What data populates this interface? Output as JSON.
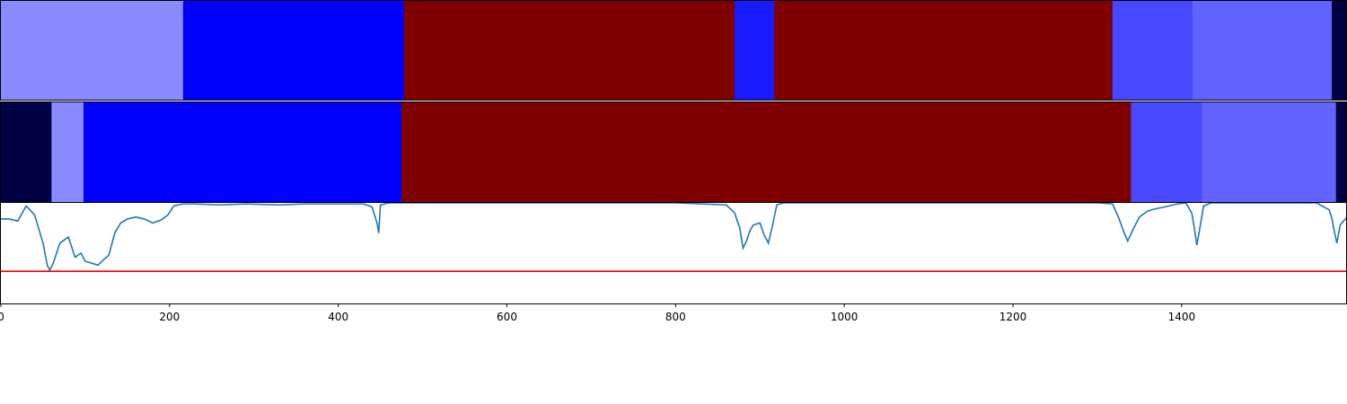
{
  "chart_data": {
    "type": "heatmap",
    "xlim": [
      0,
      1595
    ],
    "xticks": [
      0,
      200,
      400,
      600,
      800,
      1000,
      1200,
      1400
    ],
    "xtick_labels": [
      "0",
      "200",
      "400",
      "600",
      "800",
      "1000",
      "1200",
      "1400"
    ],
    "grid": false,
    "tracks": [
      {
        "segments": [
          {
            "start": 0,
            "end": 216,
            "color": "#8a8aff"
          },
          {
            "start": 216,
            "end": 478,
            "color": "#0000ff"
          },
          {
            "start": 478,
            "end": 870,
            "color": "#800000"
          },
          {
            "start": 870,
            "end": 917,
            "color": "#1a1aff"
          },
          {
            "start": 917,
            "end": 1318,
            "color": "#800000"
          },
          {
            "start": 1318,
            "end": 1413,
            "color": "#4848ff"
          },
          {
            "start": 1413,
            "end": 1578,
            "color": "#6262ff"
          },
          {
            "start": 1578,
            "end": 1595,
            "color": "#000044"
          }
        ]
      },
      {
        "segments": [
          {
            "start": 0,
            "end": 60,
            "color": "#000044"
          },
          {
            "start": 60,
            "end": 98,
            "color": "#8a8aff"
          },
          {
            "start": 98,
            "end": 475,
            "color": "#0000ff"
          },
          {
            "start": 475,
            "end": 1340,
            "color": "#800000"
          },
          {
            "start": 1340,
            "end": 1424,
            "color": "#4848ff"
          },
          {
            "start": 1424,
            "end": 1583,
            "color": "#6262ff"
          },
          {
            "start": 1583,
            "end": 1595,
            "color": "#000044"
          }
        ]
      }
    ],
    "line_series": {
      "color": "#1f77b4",
      "ylim": [
        0,
        1
      ],
      "x": [
        0,
        10,
        20,
        30,
        40,
        50,
        55,
        58,
        62,
        70,
        80,
        88,
        95,
        100,
        108,
        115,
        120,
        128,
        135,
        142,
        150,
        160,
        170,
        180,
        190,
        198,
        205,
        215,
        230,
        260,
        290,
        330,
        360,
        400,
        430,
        440,
        446,
        448,
        450,
        460,
        480,
        520,
        600,
        700,
        800,
        860,
        870,
        876,
        880,
        884,
        888,
        892,
        900,
        905,
        910,
        915,
        920,
        928,
        940,
        1000,
        1100,
        1200,
        1300,
        1318,
        1325,
        1332,
        1336,
        1342,
        1350,
        1360,
        1368,
        1380,
        1395,
        1405,
        1412,
        1415,
        1418,
        1421,
        1426,
        1435,
        1450,
        1500,
        1560,
        1575,
        1578,
        1581,
        1584,
        1588,
        1595
      ],
      "y": [
        0.84,
        0.84,
        0.82,
        0.97,
        0.88,
        0.6,
        0.38,
        0.33,
        0.4,
        0.6,
        0.66,
        0.46,
        0.5,
        0.42,
        0.4,
        0.38,
        0.42,
        0.48,
        0.7,
        0.8,
        0.84,
        0.86,
        0.84,
        0.8,
        0.83,
        0.88,
        0.97,
        0.99,
        0.99,
        0.98,
        0.99,
        0.98,
        0.99,
        0.99,
        0.99,
        0.96,
        0.8,
        0.7,
        0.98,
        1.0,
        1.0,
        1.0,
        1.0,
        1.0,
        1.0,
        0.98,
        0.9,
        0.75,
        0.55,
        0.62,
        0.72,
        0.78,
        0.8,
        0.68,
        0.6,
        0.78,
        0.98,
        1.0,
        1.0,
        1.0,
        1.0,
        1.0,
        1.0,
        0.99,
        0.86,
        0.7,
        0.62,
        0.73,
        0.86,
        0.92,
        0.94,
        0.96,
        0.99,
        1.0,
        0.9,
        0.75,
        0.58,
        0.72,
        0.97,
        1.0,
        1.0,
        1.0,
        1.0,
        0.93,
        0.85,
        0.72,
        0.6,
        0.78,
        0.85
      ]
    },
    "threshold_line": {
      "y": 0.32,
      "color": "#ff0000"
    }
  }
}
